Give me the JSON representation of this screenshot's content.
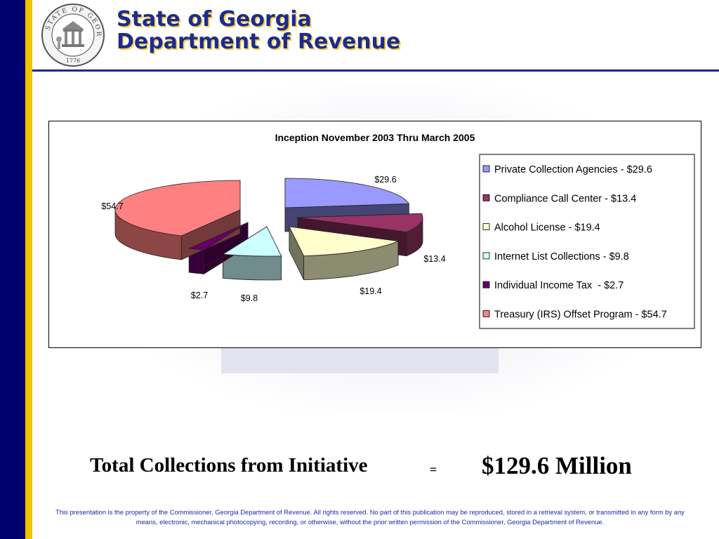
{
  "header": {
    "title_line1": "State of Georgia",
    "title_line2": "Department of Revenue",
    "seal": {
      "top_text": "STATE OF GEORGIA",
      "year": "1776"
    }
  },
  "colors": {
    "navy_bar": "#00006e",
    "gold_bar": "#f2c200",
    "title": "#1c2b8e"
  },
  "chart_data": {
    "type": "pie",
    "style": "3d-exploded",
    "title": "Inception November 2003 Thru March 2005",
    "legend_position": "right",
    "series": [
      {
        "name": "Private Collection Agencies - $29.6",
        "label": "$29.6",
        "value": 29.6,
        "color": "#9999ff"
      },
      {
        "name": "Compliance Call Center - $13.4",
        "label": "$13.4",
        "value": 13.4,
        "color": "#993366"
      },
      {
        "name": "Alcohol License - $19.4",
        "label": "$19.4",
        "value": 19.4,
        "color": "#ffffcc"
      },
      {
        "name": "Internet List Collections - $9.8",
        "label": "$9.8",
        "value": 9.8,
        "color": "#ccffff"
      },
      {
        "name": "Individual Income Tax  - $2.7",
        "label": "$2.7",
        "value": 2.7,
        "color": "#660066"
      },
      {
        "name": "Treasury (IRS) Offset Program - $54.7",
        "label": "$54.7",
        "value": 54.7,
        "color": "#ff8080"
      }
    ]
  },
  "summary": {
    "label": "Total Collections from  Initiative",
    "equals": "=",
    "value": "$129.6 Million"
  },
  "footer": {
    "line1": "This presentation is the property of the Commissioner, Georgia Department of Revenue.  All rights reserved.  No part of this publication may be reproduced, stored in a retrieval system, or transmitted in any form by any",
    "line2": "means, electronic, mechanical photocopying, recording, or otherwise, without the prior written permission of the Commissioner, Georgia Department of Revenue."
  }
}
